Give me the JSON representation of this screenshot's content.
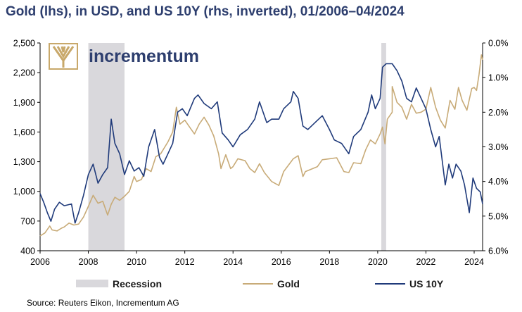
{
  "title": "Gold (lhs), in USD, and US 10Y (rhs, inverted), 01/2006–04/2024",
  "source": "Source: Reuters Eikon, Incrementum AG",
  "logo": {
    "text": "incrementum",
    "color": "#2d3e6e",
    "mark_color": "#c8a86a"
  },
  "chart_data": {
    "type": "line",
    "x_range": [
      2006.0,
      2024.35
    ],
    "x_ticks": [
      "2006",
      "2008",
      "2010",
      "2012",
      "2014",
      "2016",
      "2018",
      "2020",
      "2022",
      "2024"
    ],
    "y_left": {
      "range": [
        400,
        2500
      ],
      "ticks": [
        "400",
        "700",
        "1,000",
        "1,300",
        "1,600",
        "1,900",
        "2,200",
        "2,500"
      ]
    },
    "y_right": {
      "range": [
        0.0,
        6.0
      ],
      "inverted": true,
      "ticks": [
        "0.0%",
        "1.0%",
        "2.0%",
        "3.0%",
        "4.0%",
        "5.0%",
        "6.0%"
      ]
    },
    "recessions": [
      {
        "start": 2008.0,
        "end": 2009.5
      },
      {
        "start": 2020.15,
        "end": 2020.35
      }
    ],
    "series": [
      {
        "name": "Gold",
        "axis": "left",
        "color": "#c8ab78",
        "points": [
          [
            2006.0,
            550
          ],
          [
            2006.2,
            580
          ],
          [
            2006.4,
            650
          ],
          [
            2006.5,
            610
          ],
          [
            2006.7,
            600
          ],
          [
            2006.9,
            630
          ],
          [
            2007.0,
            640
          ],
          [
            2007.2,
            680
          ],
          [
            2007.4,
            660
          ],
          [
            2007.6,
            670
          ],
          [
            2007.8,
            740
          ],
          [
            2007.95,
            820
          ],
          [
            2008.2,
            960
          ],
          [
            2008.4,
            880
          ],
          [
            2008.6,
            900
          ],
          [
            2008.8,
            760
          ],
          [
            2008.95,
            870
          ],
          [
            2009.1,
            940
          ],
          [
            2009.3,
            910
          ],
          [
            2009.5,
            950
          ],
          [
            2009.7,
            1000
          ],
          [
            2009.9,
            1150
          ],
          [
            2010.0,
            1100
          ],
          [
            2010.2,
            1120
          ],
          [
            2010.4,
            1230
          ],
          [
            2010.6,
            1200
          ],
          [
            2010.8,
            1350
          ],
          [
            2011.0,
            1380
          ],
          [
            2011.3,
            1500
          ],
          [
            2011.5,
            1600
          ],
          [
            2011.65,
            1850
          ],
          [
            2011.8,
            1680
          ],
          [
            2012.0,
            1720
          ],
          [
            2012.2,
            1650
          ],
          [
            2012.4,
            1580
          ],
          [
            2012.6,
            1680
          ],
          [
            2012.8,
            1750
          ],
          [
            2013.0,
            1670
          ],
          [
            2013.2,
            1560
          ],
          [
            2013.4,
            1380
          ],
          [
            2013.5,
            1230
          ],
          [
            2013.7,
            1370
          ],
          [
            2013.9,
            1230
          ],
          [
            2014.0,
            1250
          ],
          [
            2014.2,
            1330
          ],
          [
            2014.5,
            1310
          ],
          [
            2014.7,
            1230
          ],
          [
            2014.9,
            1190
          ],
          [
            2015.1,
            1280
          ],
          [
            2015.3,
            1190
          ],
          [
            2015.6,
            1100
          ],
          [
            2015.9,
            1060
          ],
          [
            2016.1,
            1200
          ],
          [
            2016.5,
            1330
          ],
          [
            2016.7,
            1360
          ],
          [
            2016.9,
            1150
          ],
          [
            2017.0,
            1200
          ],
          [
            2017.5,
            1250
          ],
          [
            2017.7,
            1320
          ],
          [
            2018.0,
            1330
          ],
          [
            2018.3,
            1340
          ],
          [
            2018.6,
            1200
          ],
          [
            2018.8,
            1190
          ],
          [
            2019.0,
            1290
          ],
          [
            2019.3,
            1280
          ],
          [
            2019.5,
            1420
          ],
          [
            2019.7,
            1520
          ],
          [
            2019.9,
            1480
          ],
          [
            2020.1,
            1580
          ],
          [
            2020.2,
            1650
          ],
          [
            2020.3,
            1480
          ],
          [
            2020.4,
            1730
          ],
          [
            2020.6,
            1800
          ],
          [
            2020.6,
            2060
          ],
          [
            2020.8,
            1900
          ],
          [
            2021.0,
            1850
          ],
          [
            2021.2,
            1730
          ],
          [
            2021.4,
            1880
          ],
          [
            2021.6,
            1790
          ],
          [
            2021.8,
            1800
          ],
          [
            2022.0,
            1830
          ],
          [
            2022.2,
            2050
          ],
          [
            2022.4,
            1850
          ],
          [
            2022.6,
            1720
          ],
          [
            2022.8,
            1640
          ],
          [
            2023.0,
            1920
          ],
          [
            2023.2,
            1830
          ],
          [
            2023.35,
            2050
          ],
          [
            2023.5,
            1920
          ],
          [
            2023.7,
            1820
          ],
          [
            2023.9,
            2040
          ],
          [
            2024.0,
            2050
          ],
          [
            2024.1,
            2020
          ],
          [
            2024.2,
            2180
          ],
          [
            2024.3,
            2380
          ],
          [
            2024.35,
            2330
          ]
        ]
      },
      {
        "name": "US 10Y",
        "axis": "right",
        "color": "#1f3a7a",
        "points": [
          [
            2006.0,
            4.35
          ],
          [
            2006.15,
            4.6
          ],
          [
            2006.3,
            4.9
          ],
          [
            2006.45,
            5.15
          ],
          [
            2006.6,
            4.8
          ],
          [
            2006.8,
            4.6
          ],
          [
            2007.0,
            4.7
          ],
          [
            2007.3,
            4.65
          ],
          [
            2007.45,
            5.2
          ],
          [
            2007.6,
            4.9
          ],
          [
            2007.8,
            4.4
          ],
          [
            2008.0,
            3.8
          ],
          [
            2008.2,
            3.5
          ],
          [
            2008.4,
            4.05
          ],
          [
            2008.6,
            3.8
          ],
          [
            2008.8,
            3.6
          ],
          [
            2008.95,
            2.2
          ],
          [
            2009.1,
            2.9
          ],
          [
            2009.3,
            3.2
          ],
          [
            2009.5,
            3.8
          ],
          [
            2009.7,
            3.4
          ],
          [
            2009.9,
            3.7
          ],
          [
            2010.1,
            3.6
          ],
          [
            2010.3,
            3.85
          ],
          [
            2010.5,
            3.0
          ],
          [
            2010.75,
            2.5
          ],
          [
            2010.95,
            3.3
          ],
          [
            2011.1,
            3.5
          ],
          [
            2011.3,
            3.2
          ],
          [
            2011.5,
            2.9
          ],
          [
            2011.7,
            2.0
          ],
          [
            2011.9,
            1.9
          ],
          [
            2012.1,
            2.1
          ],
          [
            2012.4,
            1.6
          ],
          [
            2012.55,
            1.5
          ],
          [
            2012.8,
            1.75
          ],
          [
            2013.1,
            1.9
          ],
          [
            2013.35,
            1.7
          ],
          [
            2013.55,
            2.6
          ],
          [
            2013.8,
            2.8
          ],
          [
            2014.0,
            3.0
          ],
          [
            2014.3,
            2.65
          ],
          [
            2014.6,
            2.5
          ],
          [
            2014.9,
            2.2
          ],
          [
            2015.1,
            1.7
          ],
          [
            2015.4,
            2.3
          ],
          [
            2015.6,
            2.2
          ],
          [
            2015.9,
            2.2
          ],
          [
            2016.1,
            1.9
          ],
          [
            2016.4,
            1.7
          ],
          [
            2016.5,
            1.4
          ],
          [
            2016.7,
            1.6
          ],
          [
            2016.9,
            2.4
          ],
          [
            2017.1,
            2.5
          ],
          [
            2017.4,
            2.3
          ],
          [
            2017.7,
            2.1
          ],
          [
            2018.0,
            2.5
          ],
          [
            2018.2,
            2.8
          ],
          [
            2018.5,
            2.9
          ],
          [
            2018.8,
            3.2
          ],
          [
            2019.0,
            2.7
          ],
          [
            2019.3,
            2.5
          ],
          [
            2019.6,
            2.0
          ],
          [
            2019.75,
            1.5
          ],
          [
            2019.9,
            1.9
          ],
          [
            2020.1,
            1.6
          ],
          [
            2020.2,
            0.7
          ],
          [
            2020.35,
            0.6
          ],
          [
            2020.6,
            0.6
          ],
          [
            2020.8,
            0.8
          ],
          [
            2021.0,
            1.1
          ],
          [
            2021.2,
            1.6
          ],
          [
            2021.4,
            1.7
          ],
          [
            2021.6,
            1.3
          ],
          [
            2021.8,
            1.6
          ],
          [
            2022.0,
            1.9
          ],
          [
            2022.2,
            2.5
          ],
          [
            2022.4,
            3.0
          ],
          [
            2022.55,
            2.7
          ],
          [
            2022.8,
            4.1
          ],
          [
            2022.95,
            3.5
          ],
          [
            2023.1,
            3.9
          ],
          [
            2023.25,
            3.5
          ],
          [
            2023.45,
            3.7
          ],
          [
            2023.6,
            4.1
          ],
          [
            2023.8,
            4.9
          ],
          [
            2023.95,
            3.9
          ],
          [
            2024.1,
            4.2
          ],
          [
            2024.25,
            4.3
          ],
          [
            2024.35,
            4.65
          ]
        ]
      }
    ],
    "legend": {
      "position": "bottom",
      "recession_label": "Recession",
      "gold_label": "Gold",
      "us10y_label": "US 10Y"
    },
    "grid": false
  }
}
